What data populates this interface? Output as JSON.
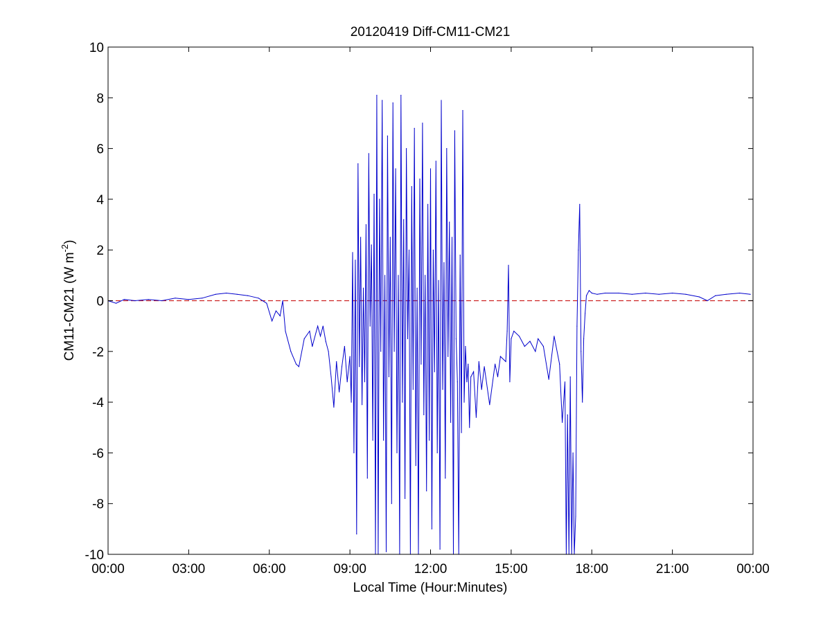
{
  "chart_data": {
    "type": "line",
    "title": "20120419 Diff-CM11-CM21",
    "xlabel": "Local Time (Hour:Minutes)",
    "ylabel": {
      "text": "CM11-CM21 (W m",
      "superscript": "-2",
      "suffix": ")"
    },
    "xlim": [
      0,
      24
    ],
    "ylim": [
      -10,
      10
    ],
    "x_ticks": [
      {
        "value": 0,
        "label": "00:00"
      },
      {
        "value": 3,
        "label": "03:00"
      },
      {
        "value": 6,
        "label": "06:00"
      },
      {
        "value": 9,
        "label": "09:00"
      },
      {
        "value": 12,
        "label": "12:00"
      },
      {
        "value": 15,
        "label": "15:00"
      },
      {
        "value": 18,
        "label": "18:00"
      },
      {
        "value": 21,
        "label": "21:00"
      },
      {
        "value": 24,
        "label": "00:00"
      }
    ],
    "y_ticks": [
      {
        "value": 10,
        "label": "10"
      },
      {
        "value": 8,
        "label": "8"
      },
      {
        "value": 6,
        "label": "6"
      },
      {
        "value": 4,
        "label": "4"
      },
      {
        "value": 2,
        "label": "2"
      },
      {
        "value": 0,
        "label": "0"
      },
      {
        "value": -2,
        "label": "-2"
      },
      {
        "value": -4,
        "label": "-4"
      },
      {
        "value": -6,
        "label": "-6"
      },
      {
        "value": -8,
        "label": "-8"
      },
      {
        "value": -10,
        "label": "-10"
      }
    ],
    "grid": false,
    "reference_line": {
      "y": 0,
      "color": "#cc2222",
      "style": "dashed"
    },
    "series": [
      {
        "color": "#0000cc",
        "x": [
          0.0,
          0.3,
          0.6,
          1.0,
          1.5,
          2.0,
          2.5,
          3.0,
          3.5,
          4.0,
          4.4,
          4.8,
          5.2,
          5.6,
          5.9,
          6.1,
          6.25,
          6.4,
          6.5,
          6.6,
          6.8,
          7.0,
          7.1,
          7.3,
          7.5,
          7.6,
          7.8,
          7.9,
          8.0,
          8.1,
          8.2,
          8.3,
          8.4,
          8.5,
          8.6,
          8.7,
          8.8,
          8.9,
          9.0,
          9.05,
          9.1,
          9.15,
          9.2,
          9.25,
          9.3,
          9.35,
          9.4,
          9.45,
          9.5,
          9.55,
          9.6,
          9.65,
          9.7,
          9.75,
          9.8,
          9.85,
          9.9,
          9.95,
          10.0,
          10.05,
          10.1,
          10.15,
          10.2,
          10.25,
          10.3,
          10.35,
          10.4,
          10.45,
          10.5,
          10.55,
          10.6,
          10.65,
          10.7,
          10.75,
          10.8,
          10.85,
          10.9,
          10.95,
          11.0,
          11.05,
          11.1,
          11.15,
          11.2,
          11.25,
          11.3,
          11.35,
          11.4,
          11.45,
          11.5,
          11.55,
          11.6,
          11.65,
          11.7,
          11.75,
          11.8,
          11.85,
          11.9,
          11.95,
          12.0,
          12.05,
          12.1,
          12.15,
          12.2,
          12.25,
          12.3,
          12.35,
          12.4,
          12.45,
          12.5,
          12.55,
          12.6,
          12.65,
          12.7,
          12.75,
          12.8,
          12.85,
          12.9,
          12.95,
          13.0,
          13.05,
          13.1,
          13.15,
          13.2,
          13.25,
          13.3,
          13.35,
          13.4,
          13.45,
          13.5,
          13.6,
          13.7,
          13.8,
          13.9,
          14.0,
          14.2,
          14.4,
          14.5,
          14.6,
          14.8,
          14.85,
          14.9,
          14.95,
          15.0,
          15.1,
          15.3,
          15.5,
          15.7,
          15.9,
          16.0,
          16.2,
          16.4,
          16.6,
          16.8,
          16.9,
          17.0,
          17.05,
          17.1,
          17.15,
          17.2,
          17.25,
          17.3,
          17.35,
          17.4,
          17.45,
          17.5,
          17.55,
          17.6,
          17.65,
          17.7,
          17.75,
          17.8,
          17.9,
          18.0,
          18.2,
          18.5,
          19.0,
          19.5,
          20.0,
          20.5,
          21.0,
          21.5,
          22.0,
          22.3,
          22.6,
          23.0,
          23.5,
          23.9
        ],
        "y": [
          0.0,
          -0.1,
          0.05,
          0.0,
          0.05,
          0.0,
          0.1,
          0.05,
          0.1,
          0.25,
          0.3,
          0.25,
          0.2,
          0.1,
          -0.1,
          -0.8,
          -0.4,
          -0.6,
          0.0,
          -1.2,
          -2.0,
          -2.5,
          -2.6,
          -1.5,
          -1.2,
          -1.8,
          -1.0,
          -1.4,
          -1.0,
          -1.6,
          -2.0,
          -3.0,
          -4.2,
          -2.4,
          -3.6,
          -2.6,
          -1.8,
          -3.2,
          -2.2,
          -4.0,
          1.9,
          -6.0,
          1.6,
          -9.2,
          5.4,
          -2.6,
          2.5,
          -4.1,
          0.5,
          -3.2,
          3.0,
          -7.0,
          5.8,
          -1.0,
          2.2,
          -5.5,
          4.2,
          -10.0,
          8.1,
          -10.0,
          4.0,
          -2.0,
          7.9,
          -5.5,
          1.0,
          -9.9,
          6.5,
          -3.0,
          2.5,
          -8.0,
          7.8,
          -2.0,
          5.2,
          -6.0,
          1.0,
          -10.0,
          8.1,
          -4.0,
          3.2,
          -7.8,
          6.0,
          -1.5,
          2.0,
          -10.0,
          4.5,
          -3.5,
          6.8,
          -6.5,
          0.5,
          -10.0,
          4.8,
          -2.5,
          7.0,
          -4.5,
          1.0,
          -7.5,
          3.8,
          -5.5,
          5.2,
          -9.0,
          2.0,
          -2.8,
          5.5,
          -6.0,
          0.8,
          -9.8,
          7.9,
          -3.5,
          1.5,
          -7.0,
          6.0,
          -2.2,
          3.1,
          -4.8,
          2.5,
          -10.0,
          6.7,
          -1.5,
          -3.2,
          -10.0,
          1.8,
          -5.2,
          7.5,
          -4.0,
          -1.8,
          -3.2,
          -2.5,
          -5.0,
          -3.0,
          -2.8,
          -4.6,
          -2.4,
          -3.5,
          -2.6,
          -4.1,
          -2.5,
          -3.0,
          -2.2,
          -2.4,
          -1.2,
          1.4,
          -3.2,
          -1.5,
          -1.2,
          -1.4,
          -1.8,
          -1.6,
          -2.0,
          -1.5,
          -1.8,
          -3.1,
          -1.4,
          -2.5,
          -4.8,
          -3.2,
          -10.0,
          -4.5,
          -10.0,
          -3.0,
          -10.0,
          -6.0,
          -10.0,
          -8.5,
          -1.0,
          2.0,
          3.8,
          -2.0,
          -4.0,
          -1.5,
          -0.5,
          0.2,
          0.4,
          0.3,
          0.25,
          0.3,
          0.3,
          0.25,
          0.3,
          0.25,
          0.3,
          0.25,
          0.15,
          0.0,
          0.2,
          0.25,
          0.3,
          0.25
        ]
      }
    ]
  }
}
